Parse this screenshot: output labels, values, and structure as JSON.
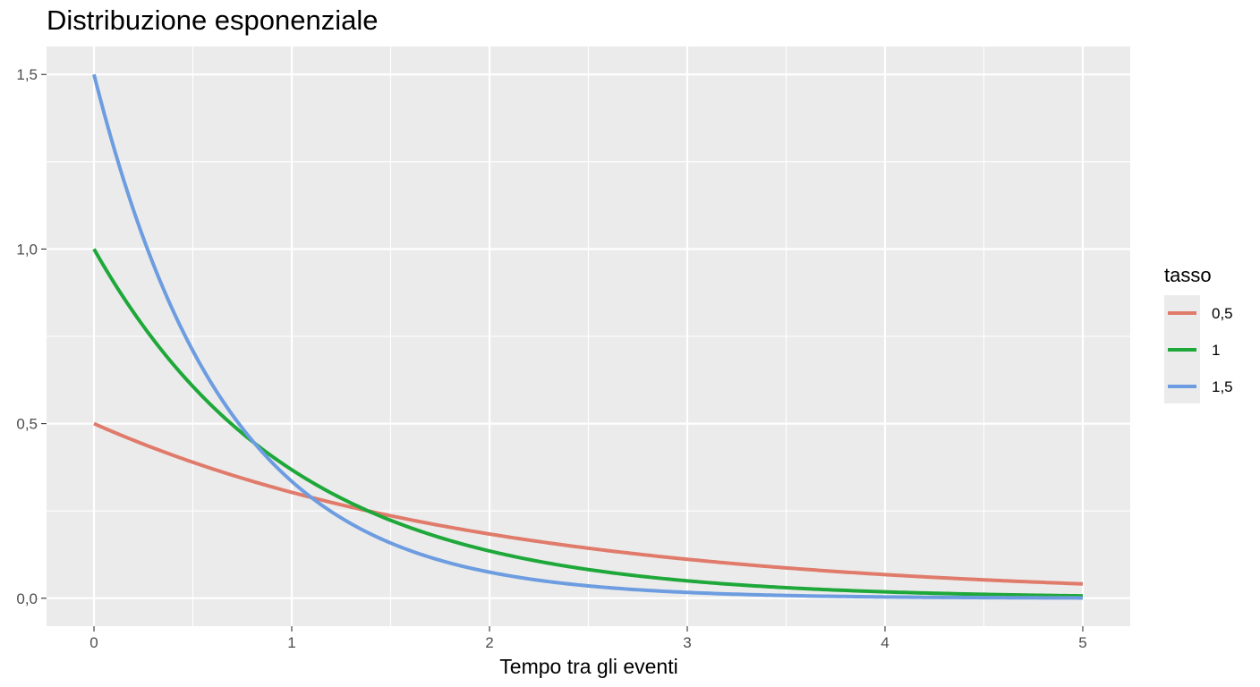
{
  "chart_data": {
    "type": "line",
    "title": "Distribuzione esponenziale",
    "xlabel": "Tempo tra gli eventi",
    "ylabel": "",
    "xlim": [
      -0.24,
      5.24
    ],
    "ylim": [
      -0.08,
      1.58
    ],
    "x_ticks": [
      0,
      1,
      2,
      3,
      4,
      5
    ],
    "x_tick_labels": [
      "0",
      "1",
      "2",
      "3",
      "4",
      "5"
    ],
    "y_ticks": [
      0,
      0.5,
      1,
      1.5
    ],
    "y_tick_labels": [
      "0,0",
      "0,5",
      "1,0",
      "1,5"
    ],
    "grid": true,
    "legend": {
      "title": "tasso",
      "position": "right"
    },
    "x_range": [
      0,
      5
    ],
    "series": [
      {
        "name": "0,5",
        "rate": 0.5,
        "color": "#e07b6b",
        "y_at_x0": 0.5
      },
      {
        "name": "1",
        "rate": 1,
        "color": "#1fa83a",
        "y_at_x0": 1.0
      },
      {
        "name": "1,5",
        "rate": 1.5,
        "color": "#6d9de0",
        "y_at_x0": 1.5
      }
    ],
    "function": "y = tasso * exp(-tasso * x)",
    "panel_background": "#ebebeb",
    "grid_color": "#ffffff"
  }
}
